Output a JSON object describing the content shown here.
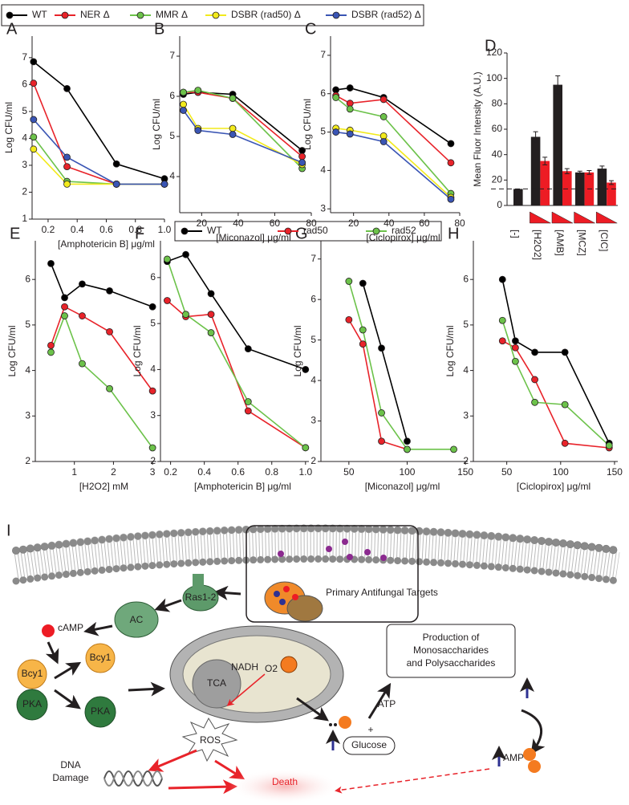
{
  "chart_data": [
    {
      "type": "line",
      "panel": "A",
      "x_label": "[Amphotericin B]  μg/ml",
      "y_label": "Log CFU/ml",
      "x": [
        0.1,
        0.33,
        0.67,
        1.0
      ],
      "xlim": [
        0.09,
        1.0
      ],
      "xticks": [
        0.2,
        0.4,
        0.6,
        0.8,
        {
          "value": 1,
          "label": "1.0"
        }
      ],
      "ylim": [
        1,
        7.8
      ],
      "yticks": [
        1,
        2,
        3,
        4,
        5,
        6,
        7
      ],
      "series": [
        {
          "name": "WT",
          "color": "#000000",
          "values": [
            6.85,
            5.85,
            3.05,
            2.5
          ]
        },
        {
          "name": "NER Δ",
          "color": "#e8232a",
          "values": [
            6.05,
            2.95,
            2.3,
            2.3
          ]
        },
        {
          "name": "MMR Δ",
          "color": "#6cc24a",
          "values": [
            4.05,
            2.4,
            2.3,
            2.3
          ]
        },
        {
          "name": "DSBR (rad50) Δ",
          "color": "#f2ea1c",
          "values": [
            3.6,
            2.3,
            2.3,
            2.3
          ]
        },
        {
          "name": "DSBR (rad52) Δ",
          "color": "#3a55b4",
          "values": [
            4.7,
            3.3,
            2.3,
            2.3
          ]
        }
      ]
    },
    {
      "type": "line",
      "panel": "B",
      "x_label": "[Miconazol]  μg/ml",
      "y_label": "Log CFU/ml",
      "x": [
        10,
        18,
        37,
        75
      ],
      "xlim": [
        8,
        80
      ],
      "xticks": [
        20,
        40,
        60,
        80
      ],
      "ylim": [
        3.1,
        7.5
      ],
      "yticks": [
        4,
        5,
        6,
        7
      ],
      "series": [
        {
          "color": "#000000",
          "values": [
            6.05,
            6.1,
            6.05,
            4.65
          ]
        },
        {
          "color": "#e8232a",
          "values": [
            6.1,
            6.1,
            5.95,
            4.5
          ]
        },
        {
          "color": "#6cc24a",
          "values": [
            6.1,
            6.15,
            5.95,
            4.2
          ]
        },
        {
          "color": "#f2ea1c",
          "values": [
            5.8,
            5.2,
            5.2,
            4.3
          ]
        },
        {
          "color": "#3a55b4",
          "values": [
            5.65,
            5.15,
            5.05,
            4.35
          ]
        }
      ]
    },
    {
      "type": "line",
      "panel": "C",
      "x_label": "[Ciclopirox]  μg/ml",
      "y_label": "Log CFU/ml",
      "x": [
        10,
        18,
        37,
        75
      ],
      "xlim": [
        7,
        80
      ],
      "xticks": [
        20,
        40,
        60,
        80
      ],
      "ylim": [
        2.9,
        7.5
      ],
      "yticks": [
        3,
        4,
        5,
        6,
        7
      ],
      "series": [
        {
          "color": "#000000",
          "values": [
            6.1,
            6.15,
            5.9,
            4.7
          ]
        },
        {
          "color": "#e8232a",
          "values": [
            5.95,
            5.75,
            5.85,
            4.2
          ]
        },
        {
          "color": "#6cc24a",
          "values": [
            5.9,
            5.6,
            5.4,
            3.4
          ]
        },
        {
          "color": "#f2ea1c",
          "values": [
            5.1,
            5.05,
            4.9,
            3.3
          ]
        },
        {
          "color": "#3a55b4",
          "values": [
            5.0,
            4.95,
            4.75,
            3.25
          ]
        }
      ]
    },
    {
      "type": "bar",
      "panel": "D",
      "y_label": "Mean Fluor Intensity (A.U.)",
      "categories": [
        "[-]",
        "[H2O2]",
        "[AMB]",
        "[MCZ]",
        "[CIC]"
      ],
      "ylim": [
        0,
        120
      ],
      "yticks": [
        0,
        20,
        40,
        60,
        80,
        100,
        120
      ],
      "hline": 13,
      "series": [
        {
          "color": "#231f20",
          "values": [
            13,
            54,
            95,
            26,
            29
          ],
          "errors": [
            null,
            4,
            7,
            1,
            2
          ]
        },
        {
          "color": "#ed1c24",
          "values": [
            null,
            35,
            27,
            26,
            18
          ],
          "errors": [
            null,
            3,
            2,
            1.5,
            1.5
          ]
        }
      ]
    },
    {
      "type": "line",
      "panel": "E",
      "x_label": "[H2O2] mM",
      "y_label": "Log CFU/ml",
      "x": [
        0.4,
        0.75,
        1.2,
        1.9,
        3
      ],
      "xlim": [
        0,
        3.1
      ],
      "xticks": [
        1,
        2,
        3
      ],
      "ylim": [
        2,
        6.85
      ],
      "yticks": [
        2,
        3,
        4,
        5,
        6
      ],
      "series": [
        {
          "name": "WT",
          "color": "#000000",
          "values": [
            6.35,
            5.6,
            5.9,
            5.75,
            5.4
          ]
        },
        {
          "name": "rad50",
          "color": "#e8232a",
          "values": [
            4.55,
            5.4,
            5.2,
            4.85,
            3.55
          ]
        },
        {
          "name": "rad52",
          "color": "#6cc24a",
          "values": [
            4.4,
            5.2,
            4.15,
            3.6,
            2.3
          ]
        }
      ]
    },
    {
      "type": "line",
      "panel": "F",
      "x_label": "[Amphotericin B]  μg/ml",
      "y_label": "Log CFU/ml",
      "x": [
        0.18,
        0.29,
        0.44,
        0.66,
        1.0
      ],
      "xlim": [
        0.14,
        1.02
      ],
      "xticks": [
        0.2,
        0.4,
        0.6,
        0.8,
        {
          "value": 1,
          "label": "1.0"
        }
      ],
      "ylim": [
        2,
        6.8
      ],
      "yticks": [
        2,
        3,
        4,
        5,
        6
      ],
      "series": [
        {
          "color": "#000000",
          "values": [
            6.35,
            6.5,
            5.65,
            4.45,
            4.0
          ]
        },
        {
          "color": "#e8232a",
          "values": [
            5.5,
            5.15,
            5.2,
            3.1,
            2.3
          ]
        },
        {
          "color": "#6cc24a",
          "values": [
            6.4,
            5.2,
            4.8,
            3.3,
            2.3
          ]
        }
      ]
    },
    {
      "type": "line",
      "panel": "G",
      "x_label": "[Miconazol]  μg/ml",
      "y_label": "Log CFU/ml",
      "x": [
        50,
        62,
        78,
        100,
        140
      ],
      "xlim": [
        26,
        152
      ],
      "xticks": [
        50,
        100,
        150
      ],
      "ylim": [
        2,
        7.45
      ],
      "yticks": [
        2,
        3,
        4,
        5,
        6,
        7
      ],
      "series": [
        {
          "color": "#000000",
          "values": [
            null,
            6.4,
            4.8,
            2.5,
            null
          ]
        },
        {
          "color": "#e8232a",
          "values": [
            5.5,
            4.9,
            2.5,
            2.3,
            null
          ]
        },
        {
          "color": "#6cc24a",
          "values": [
            6.45,
            5.25,
            3.2,
            2.3,
            2.3
          ]
        }
      ]
    },
    {
      "type": "line",
      "panel": "H",
      "x_label": "[Ciclopirox]  μg/ml",
      "y_label": "Log CFU/ml",
      "x": [
        46,
        58,
        76,
        104,
        145
      ],
      "xlim": [
        19,
        153
      ],
      "xticks": [
        50,
        100,
        150
      ],
      "ylim": [
        2,
        6.85
      ],
      "yticks": [
        2,
        3,
        4,
        5,
        6
      ],
      "series": [
        {
          "color": "#000000",
          "values": [
            6.0,
            4.65,
            4.4,
            4.4,
            2.4
          ]
        },
        {
          "color": "#e8232a",
          "values": [
            4.65,
            4.5,
            3.8,
            2.4,
            2.3
          ]
        },
        {
          "color": "#6cc24a",
          "values": [
            5.1,
            4.2,
            3.3,
            3.25,
            2.35
          ]
        }
      ]
    }
  ],
  "diagram": {
    "panel": "I",
    "targets": "Primary Antifungal Targets",
    "camp": "cAMP",
    "ac": "AC",
    "ras": "Ras1-2",
    "bcy1": "Bcy1",
    "pka": "PKA",
    "tca": "TCA",
    "nadh": "NADH",
    "o2": "O2",
    "ros": "ROS",
    "atp": "ATP",
    "glucose": "Glucose",
    "plus": "+",
    "production": [
      "Production of",
      "Monosaccharides",
      "and Polysaccharides"
    ],
    "amp": "AMP",
    "dna": [
      "DNA",
      "Damage"
    ],
    "death": "Death"
  }
}
